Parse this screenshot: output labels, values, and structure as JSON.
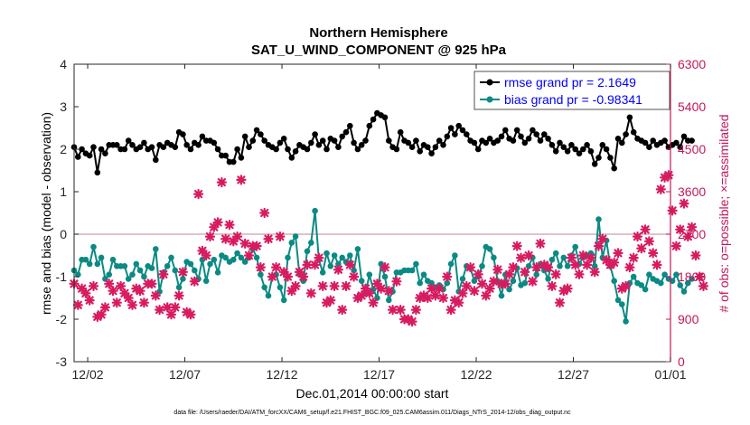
{
  "chart_data": {
    "type": "line",
    "title": "Northern Hemisphere",
    "subtitle": "SAT_U_WIND_COMPONENT @ 925 hPa",
    "xlabel": "Dec.01,2014 00:00:00 start",
    "ylabel_left": "rmse and bias (model - observation)",
    "ylabel_right": "# of obs: o=possible; ×=assimilated",
    "footnote": "data file: /Users/raeder/DAI/ATM_forcXX/CAM6_setup/f.e21.FHIST_BGC.f09_025.CAM6assim.011/Diags_NTrS_2014-12/obs_diag_output.nc",
    "xlim": [
      0.3,
      31
    ],
    "ylim_left": [
      -3,
      4
    ],
    "ylim_right": [
      0,
      6300
    ],
    "x_ticks": [
      1,
      6,
      11,
      16,
      21,
      26,
      31
    ],
    "x_tick_labels": [
      "12/02",
      "12/07",
      "12/12",
      "12/17",
      "12/22",
      "12/27",
      "01/01"
    ],
    "y_ticks_left": [
      -3,
      -2,
      -1,
      0,
      1,
      2,
      3,
      4
    ],
    "y_ticks_right": [
      0,
      900,
      1800,
      2700,
      3600,
      4500,
      5400,
      6300
    ],
    "zero_line": 0,
    "colors": {
      "rmse": "#000000",
      "bias": "#0b8a84",
      "obs": "#d81b60",
      "legend_text": "#0000ff",
      "right_axis": "#c2185b",
      "zero_line": "#c9a0a8"
    },
    "series": [
      {
        "name": "rmse grand pr = 2.1649",
        "axis": "left",
        "marker": "dot",
        "values": [
          2.05,
          1.82,
          2.0,
          1.9,
          1.85,
          2.05,
          1.45,
          2.0,
          1.9,
          2.1,
          2.1,
          2.1,
          2.0,
          2.0,
          2.2,
          2.1,
          2.0,
          2.05,
          2.15,
          2.0,
          2.05,
          1.75,
          2.1,
          2.05,
          2.15,
          2.1,
          2.05,
          2.4,
          2.35,
          2.1,
          2.0,
          2.15,
          2.1,
          2.3,
          2.2,
          2.2,
          2.15,
          2.0,
          1.85,
          1.85,
          1.7,
          1.7,
          2.0,
          1.8,
          2.3,
          2.05,
          2.2,
          2.45,
          2.35,
          2.2,
          2.1,
          2.05,
          2.0,
          2.15,
          2.25,
          2.0,
          1.8,
          1.95,
          2.1,
          2.05,
          2.0,
          2.15,
          2.35,
          2.1,
          2.2,
          2.0,
          2.25,
          2.2,
          2.05,
          2.3,
          2.4,
          2.55,
          2.15,
          2.0,
          2.1,
          2.2,
          2.55,
          2.7,
          2.85,
          2.8,
          2.75,
          2.2,
          2.05,
          2.0,
          2.4,
          2.2,
          2.15,
          2.05,
          2.2,
          1.95,
          2.1,
          2.05,
          1.9,
          2.05,
          2.2,
          2.1,
          2.3,
          2.5,
          2.35,
          2.55,
          2.45,
          2.35,
          2.2,
          2.15,
          2.0,
          2.2,
          2.15,
          2.25,
          2.15,
          2.2,
          2.3,
          2.45,
          2.25,
          2.2,
          2.45,
          2.3,
          2.15,
          2.25,
          2.45,
          2.35,
          2.2,
          2.35,
          2.25,
          2.1,
          1.95,
          2.15,
          2.05,
          1.95,
          2.1,
          2.0,
          1.9,
          2.0,
          2.1,
          1.95,
          1.65,
          1.8,
          2.1,
          2.0,
          1.8,
          1.55,
          2.25,
          2.15,
          2.35,
          2.75,
          2.4,
          2.25,
          2.2,
          2.15,
          2.05,
          2.2,
          2.1,
          2.15,
          2.2,
          2.05,
          2.1,
          2.15,
          2.05,
          2.3,
          2.2,
          2.2
        ]
      },
      {
        "name": "bias grand pr = -0.98341",
        "axis": "left",
        "marker": "dot",
        "values": [
          -0.85,
          -0.95,
          -0.6,
          -0.6,
          -0.7,
          -0.3,
          -0.7,
          -0.55,
          -1.05,
          -0.95,
          -0.6,
          -0.75,
          -0.75,
          -0.75,
          -1.05,
          -0.95,
          -0.7,
          -0.85,
          -1.0,
          -0.75,
          -0.8,
          -0.35,
          -1.35,
          -0.9,
          -0.75,
          -0.55,
          -0.85,
          -1.25,
          -1.05,
          -0.65,
          -0.7,
          -0.85,
          -1.05,
          -0.6,
          -1.1,
          -0.7,
          -0.6,
          -0.9,
          -0.5,
          -0.55,
          -0.65,
          -0.6,
          -0.45,
          -0.55,
          -0.65,
          -0.55,
          -0.35,
          -0.55,
          -0.95,
          -1.25,
          -1.45,
          -1.0,
          -0.95,
          -1.25,
          -1.55,
          -0.55,
          -0.2,
          -0.05,
          -0.95,
          -1.1,
          -0.4,
          -0.2,
          0.55,
          -0.6,
          -0.9,
          -0.45,
          -0.75,
          -0.5,
          -0.7,
          -0.55,
          -0.65,
          -0.5,
          -0.85,
          -0.35,
          -1.1,
          -1.4,
          -0.95,
          -1.3,
          -1.5,
          -0.7,
          -1.0,
          -1.55,
          -1.35,
          -0.9,
          -0.9,
          -0.85,
          -0.85,
          -0.85,
          -0.7,
          -1.15,
          -0.95,
          -1.1,
          -1.15,
          -1.25,
          -1.2,
          -1.3,
          -1.15,
          -0.7,
          -0.5,
          -1.35,
          -1.05,
          -0.75,
          -0.8,
          -1.1,
          -1.0,
          -0.75,
          -0.3,
          -0.35,
          -0.55,
          -1.1,
          -1.45,
          -0.95,
          -1.3,
          -1.1,
          -0.8,
          -1.2,
          -1.15,
          -0.75,
          -0.55,
          -0.95,
          -0.7,
          -0.85,
          -1.05,
          -0.6,
          -0.45,
          -0.75,
          -0.55,
          -0.75,
          -0.5,
          -0.3,
          -0.7,
          -0.55,
          -0.5,
          -0.45,
          -0.75,
          0.35,
          -0.55,
          -0.15,
          -0.75,
          -1.1,
          -1.55,
          -1.65,
          -2.05,
          -1.15,
          -1.0,
          -1.15,
          -1.2,
          -1.3,
          -0.95,
          -1.05,
          -1.1,
          -1.15,
          -0.95,
          -1.05,
          -1.1,
          -0.95,
          -1.2,
          -1.35,
          -1.15,
          -1.05
        ]
      },
      {
        "name": "# of obs assimilated",
        "axis": "right",
        "marker": "star",
        "values": [
          1650,
          1200,
          1550,
          1450,
          1300,
          1600,
          950,
          1000,
          1150,
          1650,
          1500,
          1250,
          1600,
          1450,
          1350,
          1200,
          1550,
          1500,
          1250,
          1650,
          1650,
          1400,
          1100,
          1850,
          1150,
          1000,
          1150,
          1400,
          1900,
          1050,
          1000,
          1700,
          3550,
          2350,
          2250,
          2650,
          2850,
          2950,
          3800,
          2600,
          2900,
          2550,
          2650,
          3850,
          2500,
          2250,
          2450,
          2450,
          2000,
          3150,
          2600,
          1800,
          2000,
          2650,
          1900,
          1800,
          1500,
          1600,
          1900,
          1800,
          2050,
          1450,
          2050,
          2200,
          1600,
          1250,
          1300,
          1600,
          1950,
          1100,
          1600,
          2050,
          1800,
          1350,
          1400,
          1550,
          1450,
          1250,
          1650,
          1550,
          2000,
          1500,
          1100,
          1700,
          1100,
          900,
          900,
          850,
          1100,
          1350,
          1400,
          1350,
          1550,
          1400,
          1550,
          1350,
          1800,
          1100,
          1300,
          1250,
          1450,
          1600,
          2000,
          1500,
          1850,
          1650,
          1400,
          1550,
          1700,
          1950,
          1650,
          1650,
          1850,
          2000,
          2450,
          2200,
          1900,
          2250,
          1700,
          2000,
          2500,
          2050,
          2000,
          1600,
          1850,
          1250,
          1500,
          1550,
          2200,
          2050,
          1850,
          2250,
          2050,
          2200,
          1900,
          2450,
          2600,
          2150,
          2050,
          2100,
          2300,
          1550,
          1600,
          2000,
          2200,
          2650,
          2400,
          2800,
          2550,
          2300,
          2050,
          3650,
          3900,
          3950,
          3200,
          2450,
          2800,
          3350,
          2650,
          2850,
          2250,
          1800,
          1600
        ]
      }
    ]
  }
}
